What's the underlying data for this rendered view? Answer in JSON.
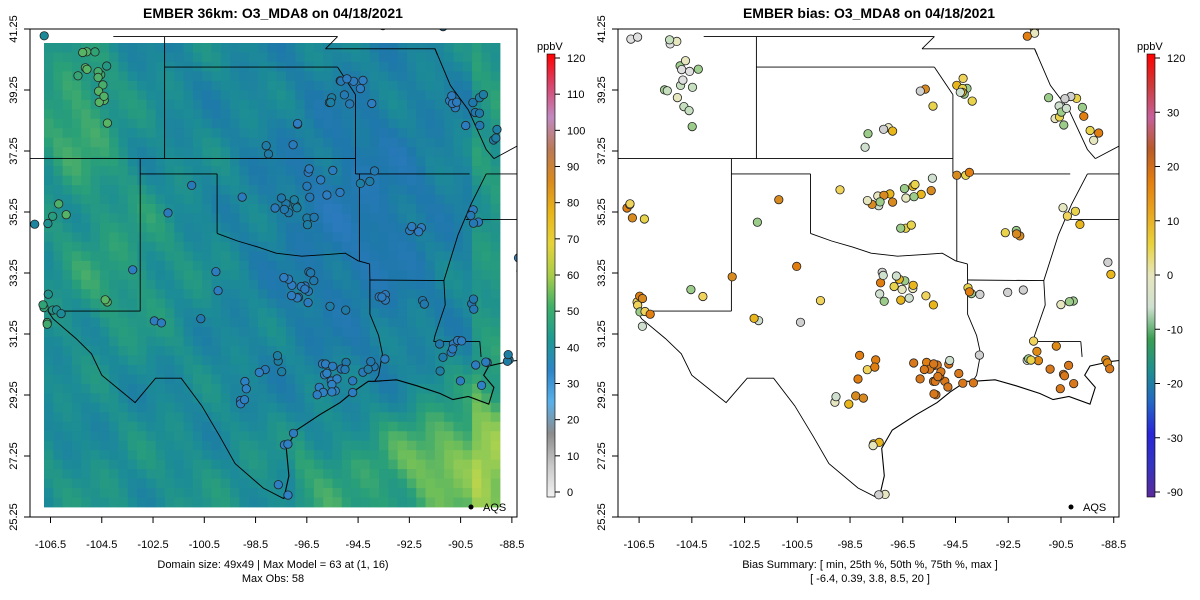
{
  "panels": [
    {
      "title": "EMBER 36km: O3_MDA8 on 04/18/2021",
      "x_ticks": [
        "-106.5",
        "-104.5",
        "-102.5",
        "-100.5",
        "-98.5",
        "-96.5",
        "-94.5",
        "-92.5",
        "-90.5",
        "-88.5"
      ],
      "y_ticks": [
        "41.25",
        "39.25",
        "37.25",
        "35.25",
        "33.25",
        "31.25",
        "29.25",
        "27.25",
        "25.25"
      ],
      "legend_label": "AQS",
      "caption_lines": [
        "Domain size: 49x49 | Max Model = 63 at (1, 16)",
        "Max Obs: 58"
      ],
      "colorbar": {
        "unit": "ppbV",
        "ticks": [
          "120",
          "110",
          "100",
          "90",
          "80",
          "70",
          "60",
          "50",
          "40",
          "30",
          "20",
          "10",
          "0"
        ],
        "colors_top_to_bottom": [
          "#ff0000",
          "#d6466e",
          "#c08ac0",
          "#ba7a58",
          "#d98a1f",
          "#e8b51a",
          "#e6d33a",
          "#a8cc49",
          "#3eb06a",
          "#1f9a92",
          "#2e85c7",
          "#5ab0e8",
          "#8c8c8c",
          "#c8c8c8",
          "#f2f2f2"
        ]
      }
    },
    {
      "title": "EMBER bias: O3_MDA8 on 04/18/2021",
      "x_ticks": [
        "-106.5",
        "-104.5",
        "-102.5",
        "-100.5",
        "-98.5",
        "-96.5",
        "-94.5",
        "-92.5",
        "-90.5",
        "-88.5"
      ],
      "y_ticks": [
        "41.25",
        "39.25",
        "37.25",
        "35.25",
        "33.25",
        "31.25",
        "29.25",
        "27.25",
        "25.25"
      ],
      "legend_label": "AQS",
      "caption_lines": [
        "Bias Summary: [ min, 25th %, 50th %, 75th %, max ]",
        "[ -6.4,   0.39,   3.8,   8.5,   20 ]"
      ],
      "colorbar": {
        "unit": "ppbV",
        "ticks": [
          "120",
          "30",
          "20",
          "10",
          "0",
          "-10",
          "-20",
          "-30",
          "-90"
        ],
        "colors_top_to_bottom": [
          "#ff0000",
          "#cc3b3b",
          "#c5609a",
          "#b85a2a",
          "#e27d10",
          "#e8a520",
          "#e9d23c",
          "#e6e6bf",
          "#cfe0cf",
          "#3a9e52",
          "#1f8f8f",
          "#2467c4",
          "#2a25d6",
          "#3434c0",
          "#5a2a9a"
        ]
      }
    }
  ],
  "chart_data": [
    {
      "type": "heatmap",
      "title": "EMBER 36km: O3_MDA8 on 04/18/2021",
      "variable": "O3_MDA8",
      "date": "04/18/2021",
      "unit": "ppbV",
      "colorbar_range": [
        0,
        120
      ],
      "xlim": [
        -107.3,
        -88.3
      ],
      "ylim": [
        25.25,
        41.25
      ],
      "grid_size": "49x49",
      "max_model": 63,
      "max_model_cell": [
        1,
        16
      ],
      "max_obs": 58,
      "observation_network": "AQS"
    },
    {
      "type": "scatter",
      "title": "EMBER bias: O3_MDA8 on 04/18/2021",
      "variable": "O3_MDA8 bias",
      "date": "04/18/2021",
      "unit": "ppbV",
      "colorbar_range": [
        -90,
        120
      ],
      "xlim": [
        -107.3,
        -88.3
      ],
      "ylim": [
        25.25,
        41.25
      ],
      "bias_summary": {
        "min": -6.4,
        "p25": 0.39,
        "p50": 3.8,
        "p75": 8.5,
        "max": 20
      },
      "observation_network": "AQS"
    }
  ]
}
